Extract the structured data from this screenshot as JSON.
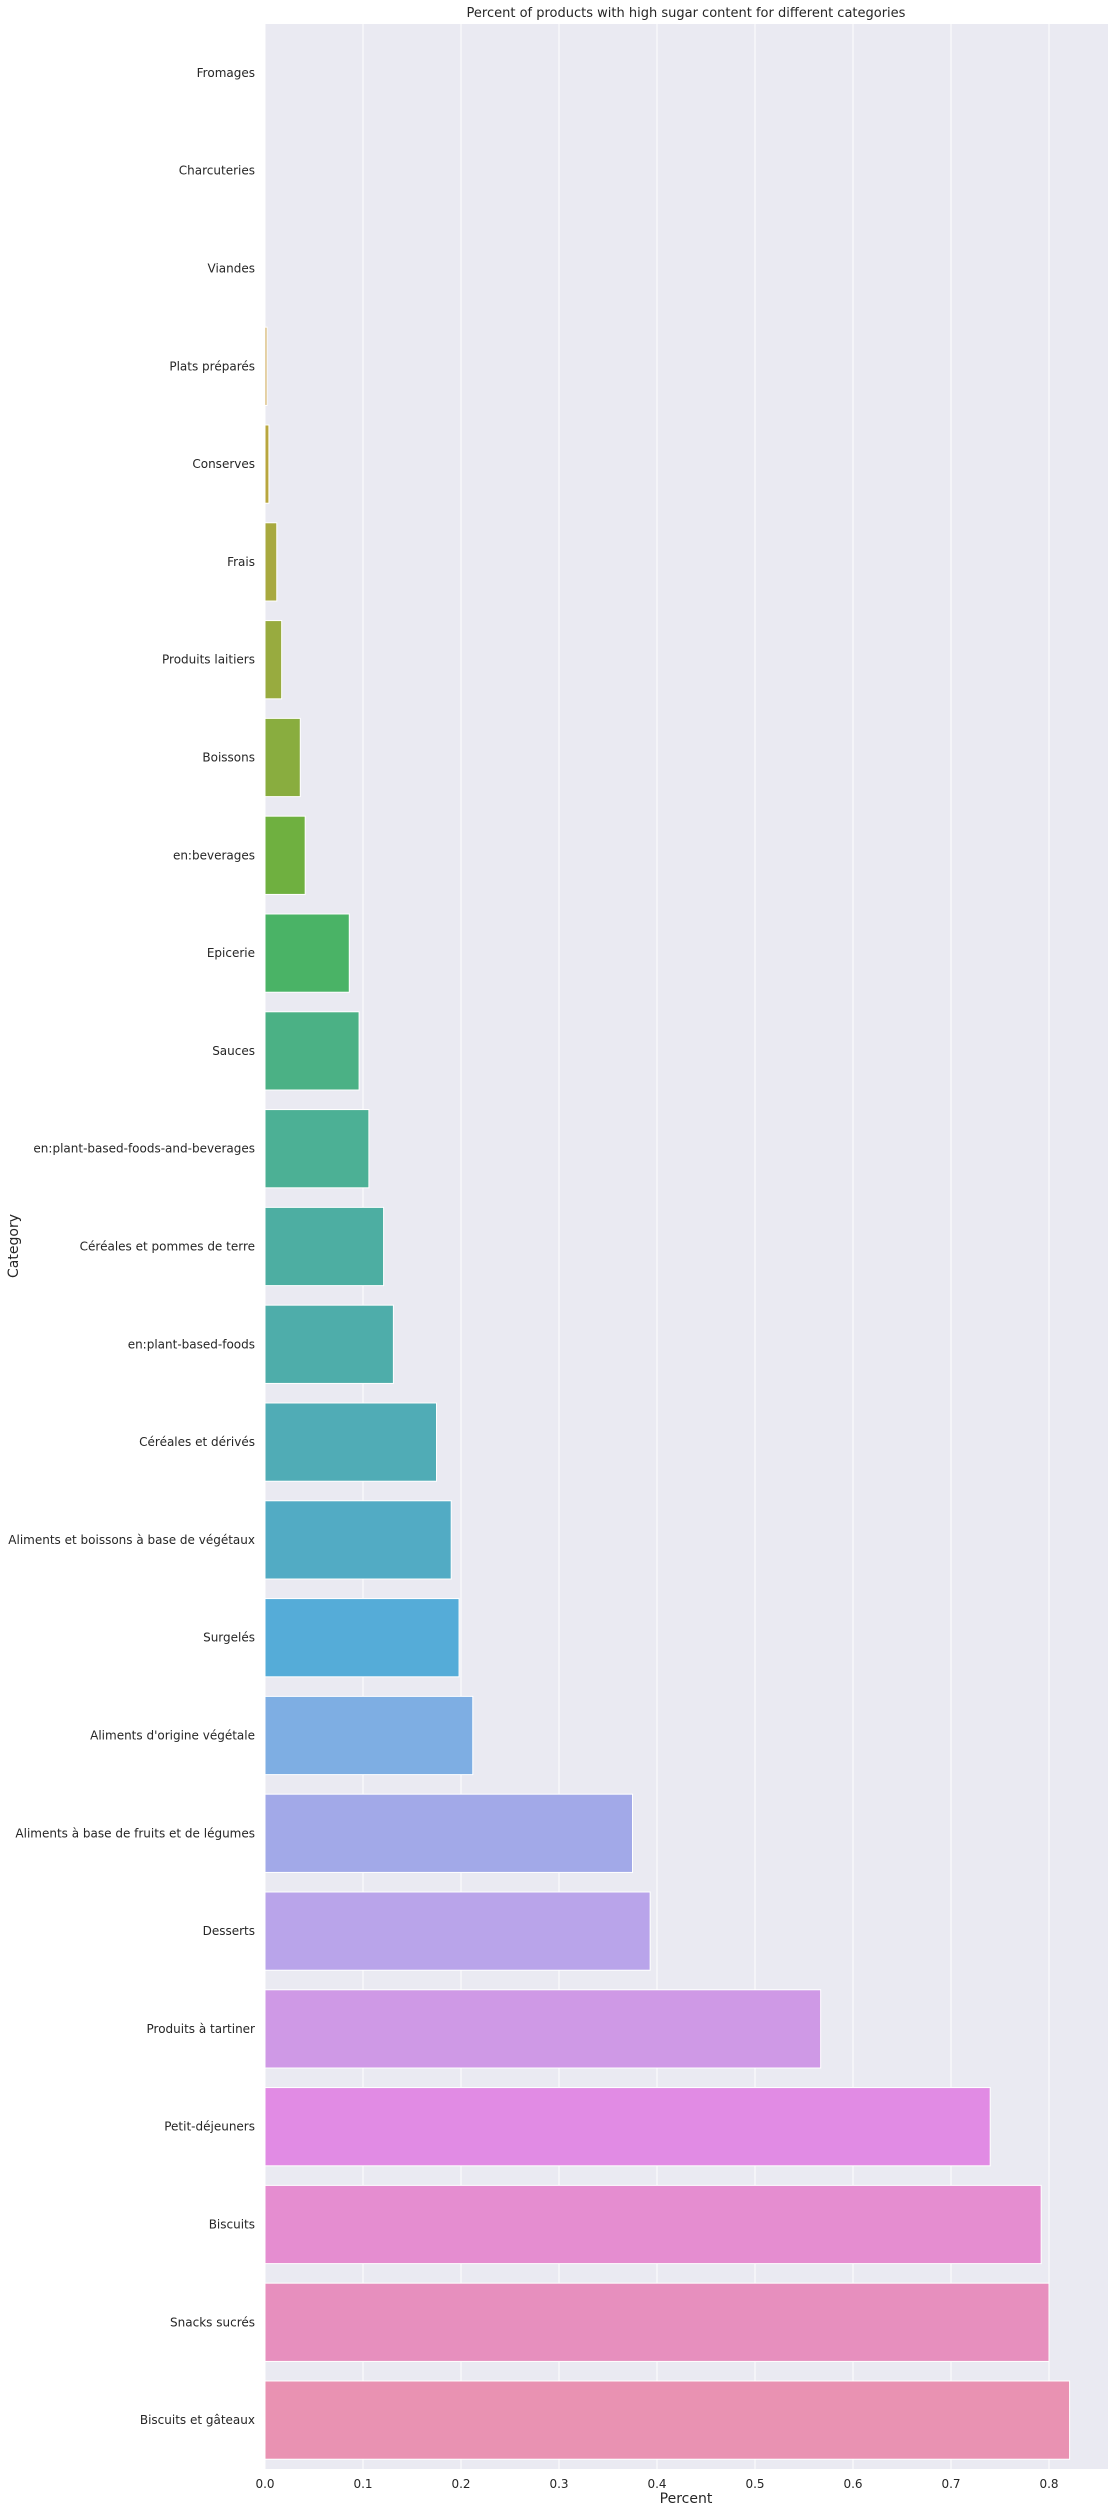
{
  "chart_data": {
    "type": "bar",
    "orientation": "horizontal",
    "title": "Percent of products with high sugar content for different categories",
    "xlabel": "Percent",
    "ylabel": "Category",
    "xlim": [
      0,
      0.86
    ],
    "xticks": [
      "0.0",
      "0.1",
      "0.2",
      "0.3",
      "0.4",
      "0.5",
      "0.6",
      "0.7",
      "0.8"
    ],
    "grid": true,
    "categories": [
      "Fromages",
      "Charcuteries",
      "Viandes",
      "Plats préparés",
      "Conserves",
      "Frais",
      "Produits laitiers",
      "Boissons",
      "en:beverages",
      "Epicerie",
      "Sauces",
      "en:plant-based-foods-and-beverages",
      "Céréales et pommes de terre",
      "en:plant-based-foods",
      "Céréales et dérivés",
      "Aliments et boissons à base de végétaux",
      "Surgelés",
      "Aliments d'origine végétale",
      "Aliments à base de fruits et de légumes",
      "Desserts",
      "Produits à tartiner",
      "Petit-déjeuners",
      "Biscuits",
      "Snacks sucrés",
      "Biscuits et gâteaux"
    ],
    "values": [
      0,
      0,
      0,
      0.002,
      0.004,
      0.012,
      0.017,
      0.036,
      0.041,
      0.086,
      0.096,
      0.106,
      0.121,
      0.131,
      0.175,
      0.19,
      0.198,
      0.212,
      0.375,
      0.393,
      0.567,
      0.74,
      0.792,
      0.8,
      0.821
    ],
    "colors": [
      "#e68a8e",
      "#e09474",
      "#d69a58",
      "#c8a047",
      "#b8a63e",
      "#a8a93f",
      "#98ab3f",
      "#89ad3f",
      "#6fb040",
      "#4ab366",
      "#4bb185",
      "#4cb095",
      "#4daea2",
      "#4eadaa",
      "#50acb6",
      "#52abc4",
      "#55acd8",
      "#7eaee3",
      "#a2a9e8",
      "#b9a4ea",
      "#cf99e6",
      "#e18be4",
      "#e58dd0",
      "#e78fbe",
      "#e992b2"
    ],
    "background": "#eaeaf2"
  }
}
